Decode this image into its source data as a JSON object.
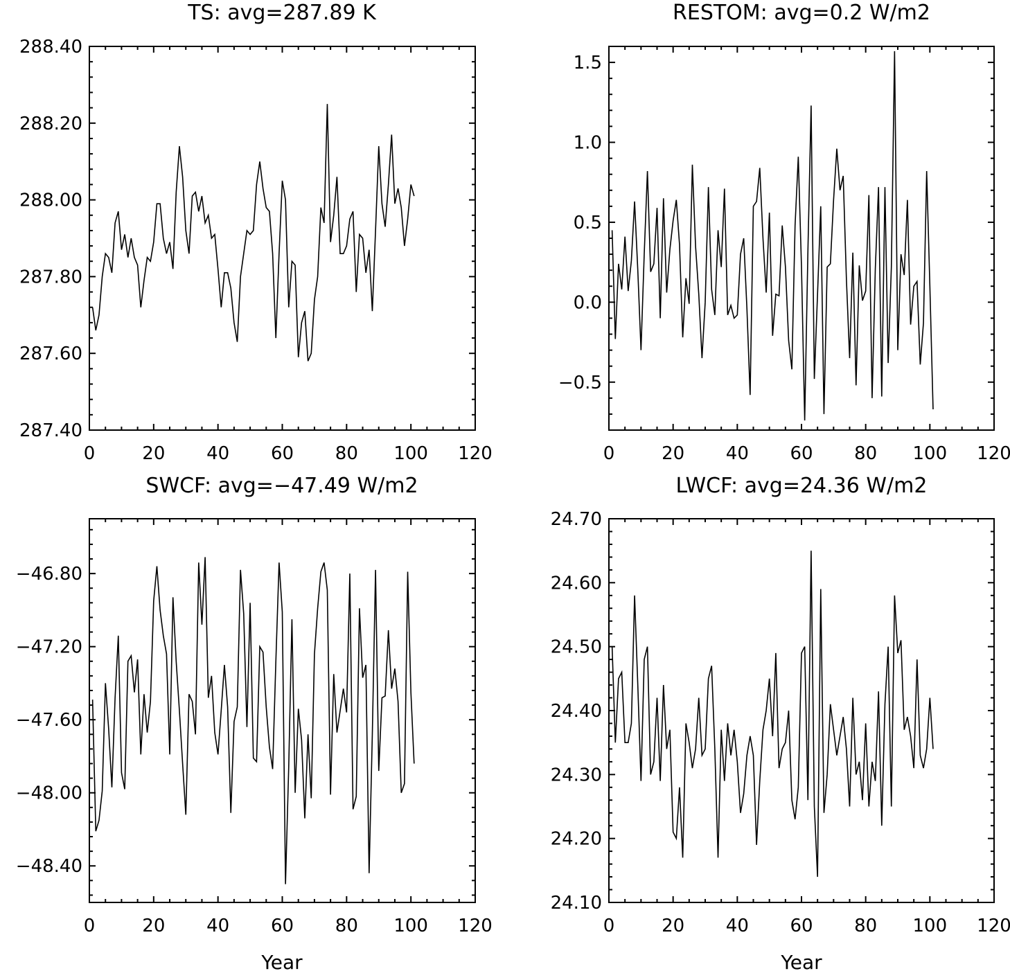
{
  "chart_data": [
    {
      "type": "line",
      "title": "TS: avg=287.89 K",
      "xlabel": "",
      "ylabel": "",
      "xlim": [
        0,
        120
      ],
      "ylim": [
        287.4,
        288.4
      ],
      "xticks": [
        0,
        20,
        40,
        60,
        80,
        100,
        120
      ],
      "xtick_labels": [
        "0",
        "20",
        "40",
        "60",
        "80",
        "100",
        "120"
      ],
      "yticks": [
        287.4,
        287.6,
        287.8,
        288.0,
        288.2,
        288.4
      ],
      "ytick_labels": [
        "287.40",
        "287.60",
        "287.80",
        "288.00",
        "288.20",
        "288.40"
      ],
      "x_start": 1,
      "values": [
        287.72,
        287.66,
        287.7,
        287.8,
        287.86,
        287.85,
        287.81,
        287.94,
        287.97,
        287.87,
        287.91,
        287.85,
        287.9,
        287.85,
        287.83,
        287.72,
        287.79,
        287.85,
        287.84,
        287.89,
        287.99,
        287.99,
        287.9,
        287.86,
        287.89,
        287.82,
        288.02,
        288.14,
        288.06,
        287.92,
        287.86,
        288.01,
        288.02,
        287.97,
        288.01,
        287.94,
        287.96,
        287.9,
        287.91,
        287.82,
        287.72,
        287.81,
        287.81,
        287.77,
        287.68,
        287.63,
        287.8,
        287.86,
        287.92,
        287.91,
        287.92,
        288.04,
        288.1,
        288.03,
        287.98,
        287.97,
        287.86,
        287.64,
        287.86,
        288.05,
        288.0,
        287.72,
        287.84,
        287.83,
        287.59,
        287.68,
        287.71,
        287.58,
        287.6,
        287.74,
        287.8,
        287.98,
        287.94,
        288.25,
        287.89,
        287.96,
        288.06,
        287.86,
        287.86,
        287.88,
        287.95,
        287.97,
        287.76,
        287.91,
        287.9,
        287.81,
        287.87,
        287.71,
        287.92,
        288.14,
        287.99,
        287.93,
        288.04,
        288.17,
        287.99,
        288.03,
        287.98,
        287.88,
        287.95,
        288.04,
        288.01
      ]
    },
    {
      "type": "line",
      "title": "RESTOM: avg=0.2 W/m2",
      "xlabel": "",
      "ylabel": "",
      "xlim": [
        0,
        120
      ],
      "ylim": [
        -0.8,
        1.6
      ],
      "xticks": [
        0,
        20,
        40,
        60,
        80,
        100,
        120
      ],
      "xtick_labels": [
        "0",
        "20",
        "40",
        "60",
        "80",
        "100",
        "120"
      ],
      "yticks": [
        -0.5,
        0.0,
        0.5,
        1.0,
        1.5
      ],
      "ytick_labels": [
        "−0.5",
        "0.0",
        "0.5",
        "1.0",
        "1.5"
      ],
      "x_start": 1,
      "values": [
        0.45,
        -0.23,
        0.24,
        0.08,
        0.41,
        0.07,
        0.26,
        0.63,
        0.2,
        -0.3,
        0.3,
        0.82,
        0.19,
        0.24,
        0.59,
        -0.1,
        0.65,
        0.06,
        0.33,
        0.51,
        0.64,
        0.36,
        -0.22,
        0.15,
        -0.01,
        0.86,
        0.35,
        0.05,
        -0.35,
        0.0,
        0.72,
        0.08,
        -0.08,
        0.45,
        0.22,
        0.71,
        -0.08,
        -0.02,
        -0.1,
        -0.08,
        0.3,
        0.4,
        -0.04,
        -0.58,
        0.6,
        0.63,
        0.84,
        0.4,
        0.06,
        0.56,
        -0.21,
        0.05,
        0.04,
        0.48,
        0.22,
        -0.24,
        -0.42,
        0.48,
        0.91,
        0.22,
        -0.74,
        0.32,
        1.23,
        -0.48,
        0.05,
        0.6,
        -0.7,
        0.22,
        0.24,
        0.64,
        0.96,
        0.7,
        0.79,
        0.14,
        -0.35,
        0.31,
        -0.52,
        0.23,
        0.01,
        0.07,
        0.67,
        -0.6,
        0.21,
        0.72,
        -0.59,
        0.72,
        -0.38,
        0.22,
        1.57,
        -0.3,
        0.3,
        0.17,
        0.64,
        -0.14,
        0.1,
        0.13,
        -0.39,
        -0.13,
        0.82,
        0.1,
        -0.67
      ]
    },
    {
      "type": "line",
      "title": "SWCF: avg=−47.49 W/m2",
      "xlabel": "Year",
      "ylabel": "",
      "xlim": [
        0,
        120
      ],
      "ylim": [
        -48.6,
        -46.5
      ],
      "xticks": [
        0,
        20,
        40,
        60,
        80,
        100,
        120
      ],
      "xtick_labels": [
        "0",
        "20",
        "40",
        "60",
        "80",
        "100",
        "120"
      ],
      "yticks": [
        -48.4,
        -48.0,
        -47.6,
        -47.2,
        -46.8
      ],
      "ytick_labels": [
        "−48.40",
        "−48.00",
        "−47.60",
        "−47.20",
        "−46.80"
      ],
      "x_start": 1,
      "values": [
        -47.49,
        -48.21,
        -48.15,
        -47.99,
        -47.4,
        -47.65,
        -47.97,
        -47.48,
        -47.14,
        -47.89,
        -47.98,
        -47.28,
        -47.25,
        -47.45,
        -47.27,
        -47.79,
        -47.46,
        -47.67,
        -47.5,
        -46.95,
        -46.76,
        -47.0,
        -47.14,
        -47.24,
        -47.79,
        -46.93,
        -47.28,
        -47.55,
        -47.84,
        -48.12,
        -47.46,
        -47.5,
        -47.68,
        -46.74,
        -47.08,
        -46.71,
        -47.48,
        -47.36,
        -47.67,
        -47.79,
        -47.55,
        -47.3,
        -47.53,
        -48.11,
        -47.61,
        -47.53,
        -46.78,
        -47.02,
        -47.64,
        -46.96,
        -47.81,
        -47.83,
        -47.2,
        -47.23,
        -47.53,
        -47.75,
        -47.87,
        -47.28,
        -46.74,
        -47.01,
        -48.5,
        -47.86,
        -47.05,
        -48.0,
        -47.54,
        -47.71,
        -48.14,
        -47.68,
        -48.03,
        -47.24,
        -46.99,
        -46.79,
        -46.74,
        -46.89,
        -48.01,
        -47.35,
        -47.67,
        -47.55,
        -47.43,
        -47.56,
        -46.8,
        -48.09,
        -48.02,
        -46.99,
        -47.37,
        -47.3,
        -48.44,
        -47.68,
        -46.78,
        -47.88,
        -47.48,
        -47.47,
        -47.11,
        -47.43,
        -47.32,
        -47.5,
        -48.0,
        -47.95,
        -46.79,
        -47.45,
        -47.84
      ]
    },
    {
      "type": "line",
      "title": "LWCF: avg=24.36 W/m2",
      "xlabel": "Year",
      "ylabel": "",
      "xlim": [
        0,
        120
      ],
      "ylim": [
        24.1,
        24.7
      ],
      "xticks": [
        0,
        20,
        40,
        60,
        80,
        100,
        120
      ],
      "xtick_labels": [
        "0",
        "20",
        "40",
        "60",
        "80",
        "100",
        "120"
      ],
      "yticks": [
        24.1,
        24.2,
        24.3,
        24.4,
        24.5,
        24.6,
        24.7
      ],
      "ytick_labels": [
        "24.10",
        "24.20",
        "24.30",
        "24.40",
        "24.50",
        "24.60",
        "24.70"
      ],
      "x_start": 1,
      "values": [
        24.5,
        24.35,
        24.45,
        24.46,
        24.35,
        24.35,
        24.38,
        24.58,
        24.44,
        24.29,
        24.48,
        24.5,
        24.3,
        24.32,
        24.42,
        24.29,
        24.44,
        24.34,
        24.37,
        24.21,
        24.2,
        24.28,
        24.17,
        24.38,
        24.35,
        24.31,
        24.34,
        24.42,
        24.33,
        24.34,
        24.45,
        24.47,
        24.34,
        24.17,
        24.37,
        24.29,
        24.38,
        24.33,
        24.37,
        24.32,
        24.24,
        24.27,
        24.33,
        24.36,
        24.33,
        24.19,
        24.29,
        24.37,
        24.4,
        24.45,
        24.36,
        24.49,
        24.31,
        24.34,
        24.35,
        24.4,
        24.26,
        24.23,
        24.28,
        24.49,
        24.5,
        24.26,
        24.65,
        24.25,
        24.14,
        24.59,
        24.24,
        24.3,
        24.41,
        24.37,
        24.33,
        24.36,
        24.39,
        24.34,
        24.25,
        24.42,
        24.3,
        24.32,
        24.26,
        24.38,
        24.25,
        24.32,
        24.29,
        24.43,
        24.22,
        24.41,
        24.5,
        24.25,
        24.58,
        24.49,
        24.51,
        24.37,
        24.39,
        24.36,
        24.31,
        24.48,
        24.33,
        24.31,
        24.34,
        24.42,
        24.34
      ]
    }
  ]
}
